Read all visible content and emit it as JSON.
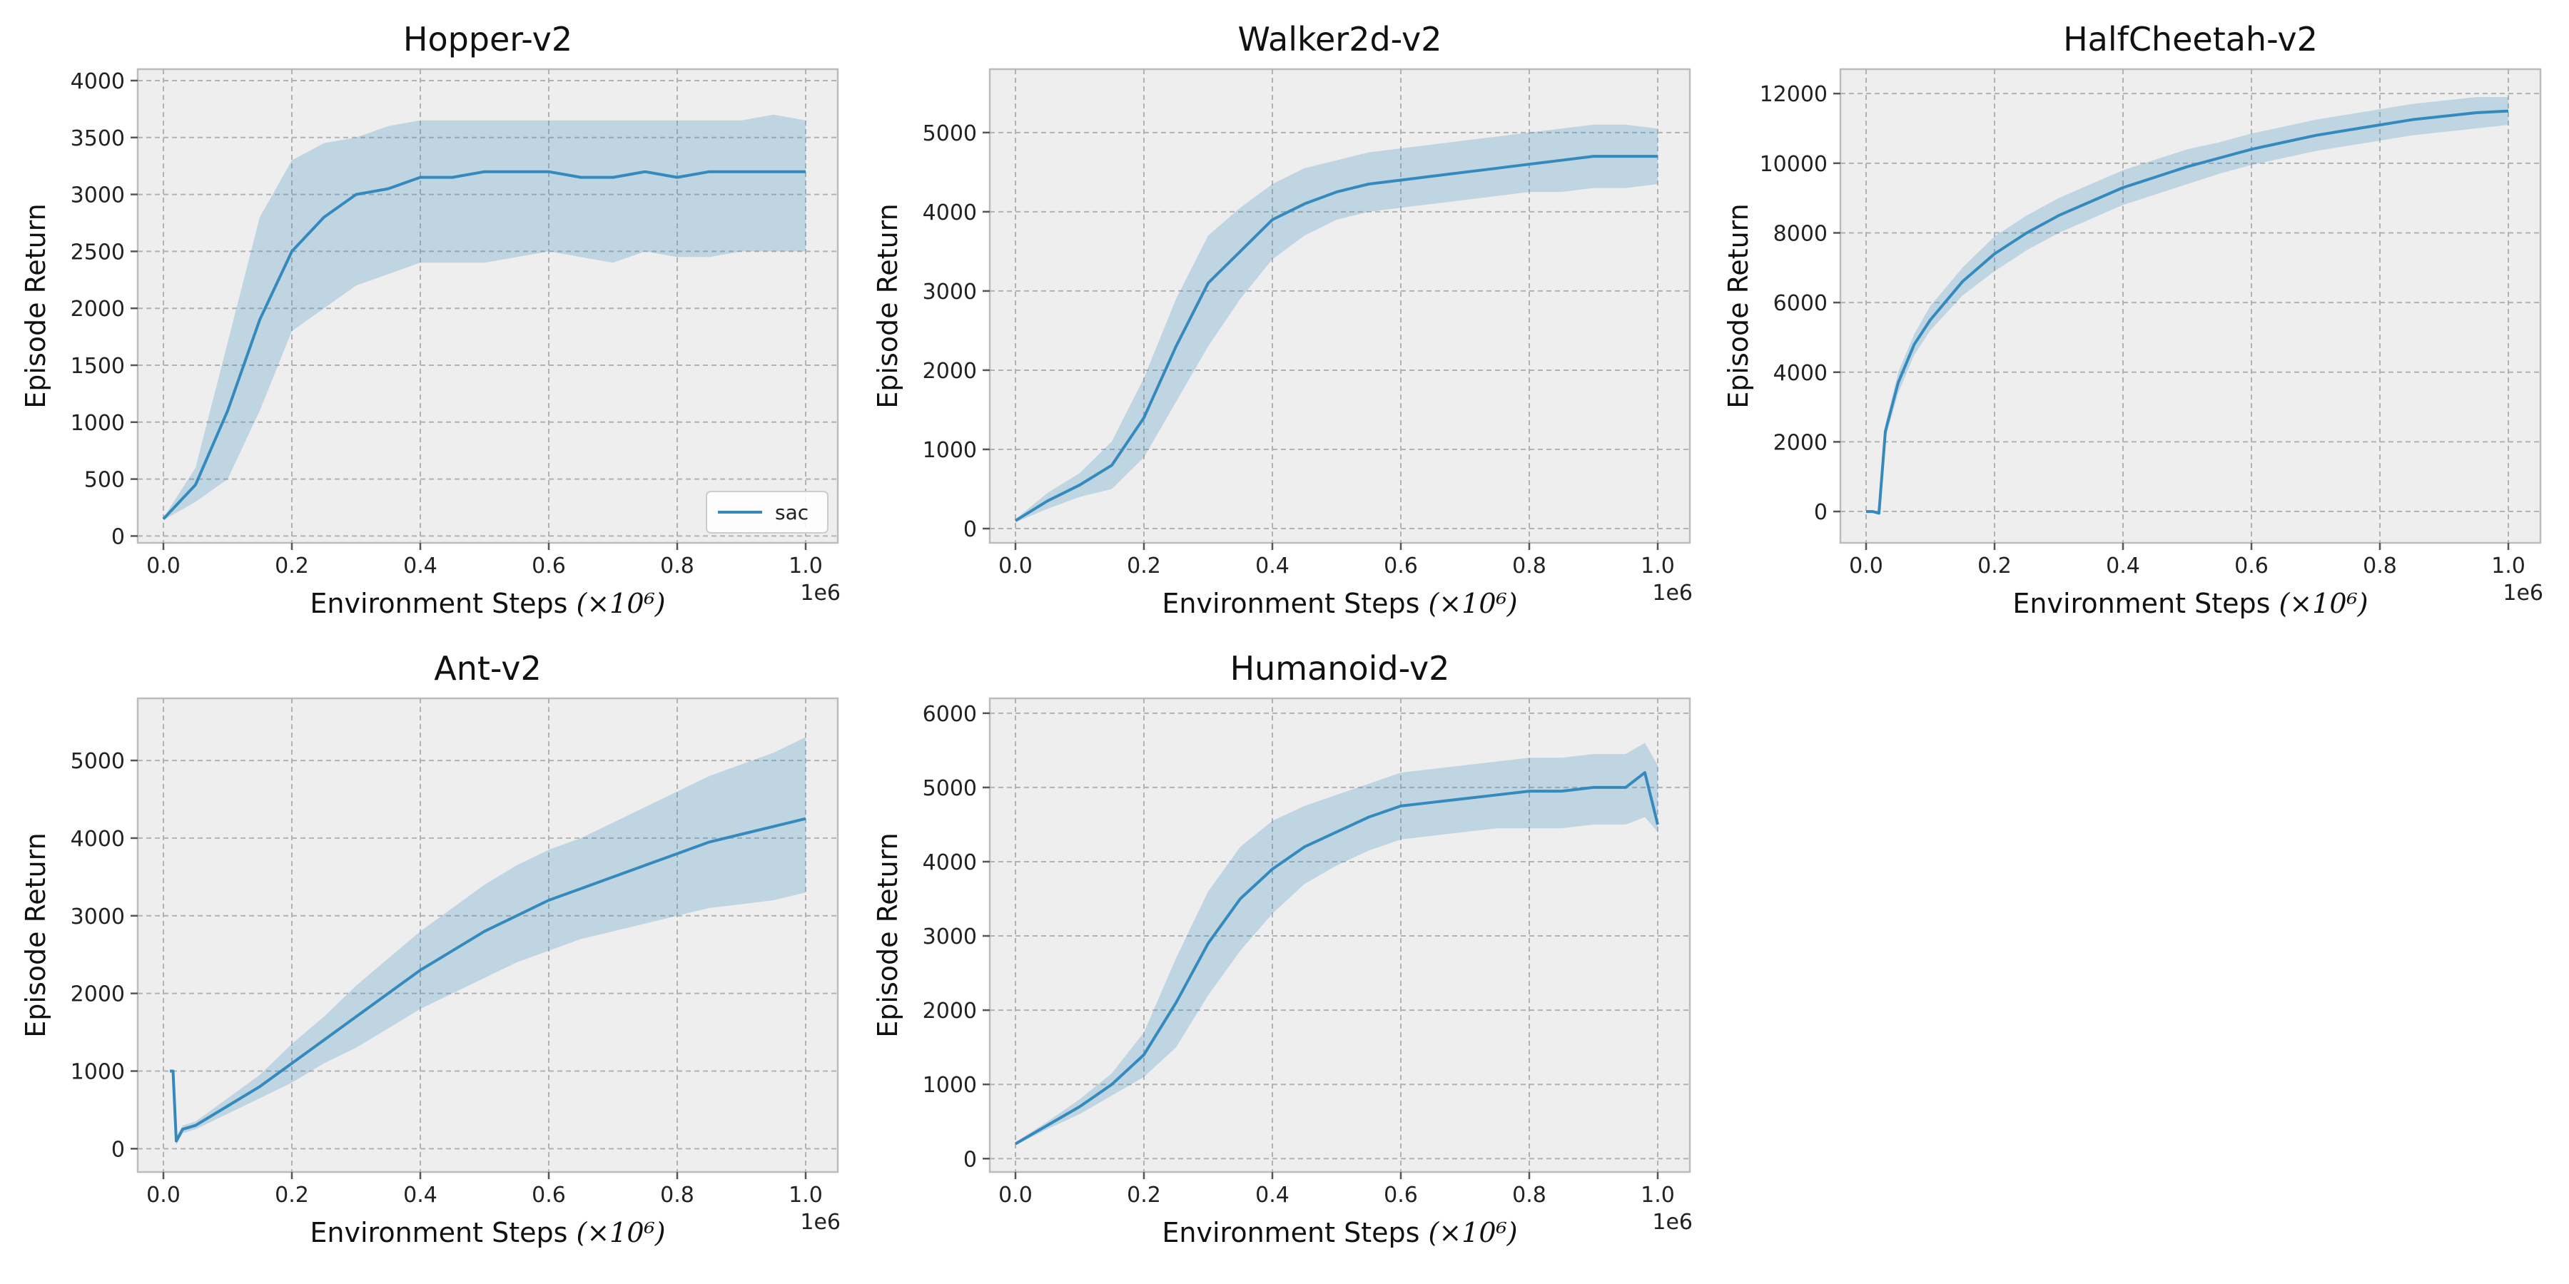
{
  "chart_data": [
    {
      "type": "line",
      "title": "Hopper-v2",
      "xlabel": "Environment Steps",
      "xlabel_unit": "(×10⁶)",
      "ylabel": "Episode Return",
      "x_offset_label": "1e6",
      "xlim": [
        -0.04,
        1.05
      ],
      "ylim": [
        -60,
        4100
      ],
      "xticks": [
        0.0,
        0.2,
        0.4,
        0.6,
        0.8,
        1.0
      ],
      "xtick_labels": [
        "0.0",
        "0.2",
        "0.4",
        "0.6",
        "0.8",
        "1.0"
      ],
      "yticks": [
        0,
        500,
        1000,
        1500,
        2000,
        2500,
        3000,
        3500,
        4000
      ],
      "ytick_labels": [
        "0",
        "500",
        "1000",
        "1500",
        "2000",
        "2500",
        "3000",
        "3500",
        "4000"
      ],
      "grid": true,
      "legend": {
        "placement": "lower-right",
        "entries": [
          "sac"
        ]
      },
      "series": [
        {
          "name": "sac",
          "color": "#348ABD",
          "x": [
            0.0,
            0.05,
            0.1,
            0.15,
            0.2,
            0.25,
            0.3,
            0.35,
            0.4,
            0.45,
            0.5,
            0.55,
            0.6,
            0.65,
            0.7,
            0.75,
            0.8,
            0.85,
            0.9,
            0.95,
            1.0
          ],
          "mean": [
            150,
            450,
            1100,
            1900,
            2500,
            2800,
            3000,
            3050,
            3150,
            3150,
            3200,
            3200,
            3200,
            3150,
            3150,
            3200,
            3150,
            3200,
            3200,
            3200,
            3200
          ],
          "lower": [
            140,
            300,
            500,
            1100,
            1800,
            2000,
            2200,
            2300,
            2400,
            2400,
            2400,
            2450,
            2500,
            2450,
            2400,
            2500,
            2450,
            2450,
            2500,
            2500,
            2500
          ],
          "upper": [
            160,
            600,
            1700,
            2800,
            3300,
            3450,
            3500,
            3600,
            3650,
            3650,
            3650,
            3650,
            3650,
            3650,
            3650,
            3650,
            3650,
            3650,
            3650,
            3700,
            3650
          ]
        }
      ]
    },
    {
      "type": "line",
      "title": "Walker2d-v2",
      "xlabel": "Environment Steps",
      "xlabel_unit": "(×10⁶)",
      "ylabel": "Episode Return",
      "x_offset_label": "1e6",
      "xlim": [
        -0.04,
        1.05
      ],
      "ylim": [
        -180,
        5800
      ],
      "xticks": [
        0.0,
        0.2,
        0.4,
        0.6,
        0.8,
        1.0
      ],
      "xtick_labels": [
        "0.0",
        "0.2",
        "0.4",
        "0.6",
        "0.8",
        "1.0"
      ],
      "yticks": [
        0,
        1000,
        2000,
        3000,
        4000,
        5000
      ],
      "ytick_labels": [
        "0",
        "1000",
        "2000",
        "3000",
        "4000",
        "5000"
      ],
      "grid": true,
      "series": [
        {
          "name": "sac",
          "color": "#348ABD",
          "x": [
            0.0,
            0.05,
            0.1,
            0.15,
            0.2,
            0.25,
            0.3,
            0.35,
            0.4,
            0.45,
            0.5,
            0.55,
            0.6,
            0.65,
            0.7,
            0.75,
            0.8,
            0.85,
            0.9,
            0.95,
            1.0
          ],
          "mean": [
            100,
            350,
            550,
            800,
            1400,
            2300,
            3100,
            3500,
            3900,
            4100,
            4250,
            4350,
            4400,
            4450,
            4500,
            4550,
            4600,
            4650,
            4700,
            4700,
            4700
          ],
          "lower": [
            80,
            250,
            400,
            500,
            900,
            1600,
            2300,
            2900,
            3400,
            3700,
            3900,
            4000,
            4050,
            4100,
            4150,
            4200,
            4250,
            4250,
            4300,
            4300,
            4350
          ],
          "upper": [
            120,
            450,
            700,
            1100,
            1900,
            2900,
            3700,
            4050,
            4350,
            4550,
            4650,
            4750,
            4800,
            4850,
            4900,
            4950,
            5000,
            5050,
            5100,
            5100,
            5050
          ]
        }
      ]
    },
    {
      "type": "line",
      "title": "HalfCheetah-v2",
      "xlabel": "Environment Steps",
      "xlabel_unit": "(×10⁶)",
      "ylabel": "Episode Return",
      "x_offset_label": "1e6",
      "xlim": [
        -0.04,
        1.05
      ],
      "ylim": [
        -900,
        12700
      ],
      "xticks": [
        0.0,
        0.2,
        0.4,
        0.6,
        0.8,
        1.0
      ],
      "xtick_labels": [
        "0.0",
        "0.2",
        "0.4",
        "0.6",
        "0.8",
        "1.0"
      ],
      "yticks": [
        0,
        2000,
        4000,
        6000,
        8000,
        10000,
        12000
      ],
      "ytick_labels": [
        "0",
        "2000",
        "4000",
        "6000",
        "8000",
        "10000",
        "12000"
      ],
      "grid": true,
      "series": [
        {
          "name": "sac",
          "color": "#348ABD",
          "x": [
            0.0,
            0.01,
            0.02,
            0.03,
            0.05,
            0.075,
            0.1,
            0.15,
            0.2,
            0.25,
            0.3,
            0.35,
            0.4,
            0.45,
            0.5,
            0.55,
            0.6,
            0.65,
            0.7,
            0.75,
            0.8,
            0.85,
            0.9,
            0.95,
            1.0
          ],
          "mean": [
            0,
            0,
            -50,
            2300,
            3700,
            4800,
            5500,
            6600,
            7400,
            8000,
            8500,
            8900,
            9300,
            9600,
            9900,
            10150,
            10400,
            10600,
            10800,
            10950,
            11100,
            11250,
            11350,
            11450,
            11500
          ],
          "lower": [
            -20,
            -20,
            -80,
            2100,
            3400,
            4500,
            5200,
            6200,
            6900,
            7500,
            8000,
            8400,
            8800,
            9100,
            9400,
            9700,
            9950,
            10150,
            10350,
            10500,
            10650,
            10800,
            10900,
            11000,
            11100
          ],
          "upper": [
            20,
            20,
            -20,
            2500,
            4000,
            5100,
            5900,
            7000,
            7900,
            8500,
            9000,
            9400,
            9800,
            10100,
            10400,
            10600,
            10850,
            11050,
            11250,
            11400,
            11550,
            11700,
            11800,
            11900,
            11900
          ]
        }
      ]
    },
    {
      "type": "line",
      "title": "Ant-v2",
      "xlabel": "Environment Steps",
      "xlabel_unit": "(×10⁶)",
      "ylabel": "Episode Return",
      "x_offset_label": "1e6",
      "xlim": [
        -0.04,
        1.05
      ],
      "ylim": [
        -300,
        5800
      ],
      "xticks": [
        0.0,
        0.2,
        0.4,
        0.6,
        0.8,
        1.0
      ],
      "xtick_labels": [
        "0.0",
        "0.2",
        "0.4",
        "0.6",
        "0.8",
        "1.0"
      ],
      "yticks": [
        0,
        1000,
        2000,
        3000,
        4000,
        5000
      ],
      "ytick_labels": [
        "0",
        "1000",
        "2000",
        "3000",
        "4000",
        "5000"
      ],
      "grid": true,
      "series": [
        {
          "name": "sac",
          "color": "#348ABD",
          "x": [
            0.01,
            0.015,
            0.02,
            0.03,
            0.05,
            0.1,
            0.15,
            0.2,
            0.25,
            0.3,
            0.35,
            0.4,
            0.45,
            0.5,
            0.55,
            0.6,
            0.65,
            0.7,
            0.75,
            0.8,
            0.85,
            0.9,
            0.95,
            1.0
          ],
          "mean": [
            1000,
            1000,
            100,
            250,
            300,
            550,
            800,
            1100,
            1400,
            1700,
            2000,
            2300,
            2550,
            2800,
            3000,
            3200,
            3350,
            3500,
            3650,
            3800,
            3950,
            4050,
            4150,
            4250
          ],
          "lower": [
            1000,
            1000,
            50,
            200,
            250,
            450,
            650,
            850,
            1100,
            1300,
            1550,
            1800,
            2000,
            2200,
            2400,
            2550,
            2700,
            2800,
            2900,
            3000,
            3100,
            3150,
            3200,
            3300
          ],
          "upper": [
            1000,
            1000,
            150,
            300,
            350,
            650,
            950,
            1350,
            1700,
            2100,
            2450,
            2800,
            3100,
            3400,
            3650,
            3850,
            4000,
            4200,
            4400,
            4600,
            4800,
            4950,
            5100,
            5300
          ]
        }
      ]
    },
    {
      "type": "line",
      "title": "Humanoid-v2",
      "xlabel": "Environment Steps",
      "xlabel_unit": "(×10⁶)",
      "ylabel": "Episode Return",
      "x_offset_label": "1e6",
      "xlim": [
        -0.04,
        1.05
      ],
      "ylim": [
        -180,
        6200
      ],
      "xticks": [
        0.0,
        0.2,
        0.4,
        0.6,
        0.8,
        1.0
      ],
      "xtick_labels": [
        "0.0",
        "0.2",
        "0.4",
        "0.6",
        "0.8",
        "1.0"
      ],
      "yticks": [
        0,
        1000,
        2000,
        3000,
        4000,
        5000,
        6000
      ],
      "ytick_labels": [
        "0",
        "1000",
        "2000",
        "3000",
        "4000",
        "5000",
        "6000"
      ],
      "grid": true,
      "series": [
        {
          "name": "sac",
          "color": "#348ABD",
          "x": [
            0.0,
            0.05,
            0.1,
            0.15,
            0.2,
            0.25,
            0.3,
            0.35,
            0.4,
            0.45,
            0.5,
            0.55,
            0.6,
            0.65,
            0.7,
            0.75,
            0.8,
            0.85,
            0.9,
            0.95,
            0.98,
            1.0
          ],
          "mean": [
            200,
            450,
            700,
            1000,
            1400,
            2100,
            2900,
            3500,
            3900,
            4200,
            4400,
            4600,
            4750,
            4800,
            4850,
            4900,
            4950,
            4950,
            5000,
            5000,
            5200,
            4500
          ],
          "lower": [
            180,
            400,
            600,
            850,
            1100,
            1500,
            2200,
            2800,
            3300,
            3700,
            3950,
            4150,
            4300,
            4350,
            4400,
            4450,
            4450,
            4450,
            4500,
            4500,
            4600,
            4400
          ],
          "upper": [
            220,
            500,
            800,
            1150,
            1700,
            2700,
            3600,
            4200,
            4550,
            4750,
            4900,
            5050,
            5200,
            5250,
            5300,
            5350,
            5400,
            5400,
            5450,
            5450,
            5600,
            5300
          ]
        }
      ]
    }
  ]
}
